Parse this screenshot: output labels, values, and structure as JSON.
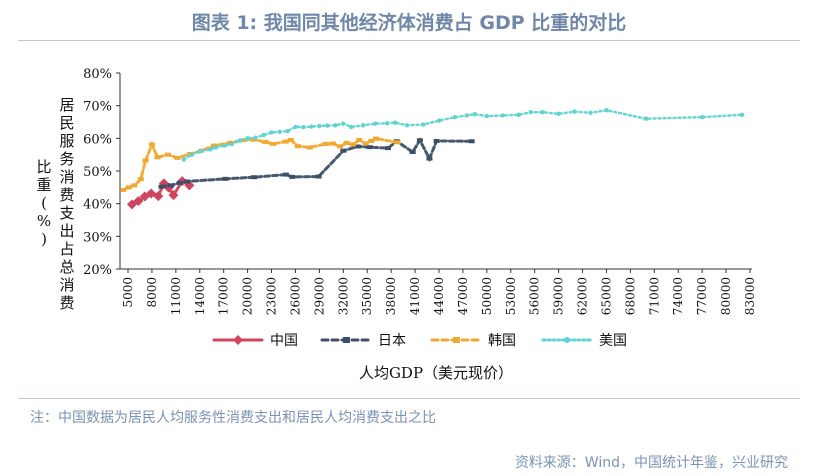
{
  "title": "图表 1:  我国同其他经济体消费占 GDP 比重的对比",
  "note": "注：中国数据为居民人均服务性消费支出和居民人均消费支出之比",
  "source": "资料来源：Wind，中国统计年鉴，兴业研究",
  "chart_data": {
    "type": "line",
    "title": "",
    "xlabel": "人均GDP（美元现价）",
    "ylabel": "居民服务消费支出占总消费比重(%)",
    "ylabel_chars": [
      "居",
      "民",
      "服",
      "务",
      "消",
      "费",
      "支",
      "出",
      "占",
      "总",
      "消",
      "费"
    ],
    "ylabel_right_chars": [
      "比",
      "重",
      "(",
      "%",
      ")"
    ],
    "ylim": [
      20,
      80
    ],
    "yticks": [
      "20%",
      "30%",
      "40%",
      "50%",
      "60%",
      "70%",
      "80%"
    ],
    "x_tick_labels": [
      "5000",
      "8000",
      "11000",
      "14000",
      "17000",
      "20000",
      "23000",
      "26000",
      "29000",
      "32000",
      "35000",
      "38000",
      "41000",
      "44000",
      "47000",
      "50000",
      "53000",
      "56000",
      "59000",
      "62000",
      "65000",
      "68000",
      "71000",
      "74000",
      "77000",
      "80000",
      "83000"
    ],
    "x_tick_values": [
      5000,
      8000,
      11000,
      14000,
      17000,
      20000,
      23000,
      26000,
      29000,
      32000,
      35000,
      38000,
      41000,
      44000,
      47000,
      50000,
      53000,
      56000,
      59000,
      62000,
      65000,
      68000,
      71000,
      74000,
      77000,
      80000,
      83000
    ],
    "xlim": [
      4000,
      84000
    ],
    "grid": false,
    "legend_position": "bottom",
    "series": [
      {
        "name": "中国",
        "color": "#d0445e",
        "marker": "diamond",
        "x": [
          5500,
          6300,
          7100,
          7900,
          8800,
          9500,
          10100,
          10700,
          11800,
          12700
        ],
        "y": [
          39.8,
          40.8,
          42.2,
          43.1,
          42.3,
          46.2,
          44.9,
          42.6,
          46.9,
          45.6
        ]
      },
      {
        "name": "日本",
        "color": "#3c4f68",
        "marker": "dash",
        "x": [
          9200,
          10400,
          11500,
          12400,
          17200,
          20800,
          24800,
          25600,
          28900,
          32000,
          33800,
          35300,
          37600,
          38700,
          40700,
          41600,
          42800,
          43700,
          48100
        ],
        "y": [
          45.2,
          45.6,
          46.4,
          46.8,
          47.6,
          48.1,
          48.9,
          48.2,
          48.3,
          56.2,
          57.5,
          57.3,
          57.0,
          59.1,
          55.8,
          59.4,
          53.8,
          59.2,
          59.1
        ]
      },
      {
        "name": "韩国",
        "color": "#f0a830",
        "marker": "dash",
        "x": [
          4400,
          5100,
          5800,
          6600,
          7200,
          8000,
          8700,
          10000,
          11200,
          12800,
          14200,
          15800,
          17800,
          19300,
          20800,
          22200,
          23200,
          24800,
          25400,
          26300,
          27800,
          29800,
          30700,
          31600,
          32400,
          33200,
          34000,
          34800,
          35500,
          36100,
          38800
        ],
        "y": [
          44.2,
          45.0,
          45.6,
          47.5,
          53.2,
          58.1,
          54.2,
          55.0,
          54.0,
          55.2,
          56.2,
          57.8,
          58.6,
          59.4,
          59.6,
          58.9,
          58.3,
          59.0,
          59.5,
          57.6,
          57.2,
          58.3,
          58.4,
          57.5,
          58.6,
          58.1,
          59.5,
          58.4,
          59.2,
          59.9,
          58.8
        ]
      },
      {
        "name": "美国",
        "color": "#5fd4d2",
        "marker": "dot",
        "x": [
          12000,
          13000,
          14000,
          15300,
          16000,
          17100,
          18000,
          19000,
          20000,
          21000,
          22000,
          23000,
          24000,
          25000,
          26000,
          27000,
          28000,
          29000,
          30000,
          31000,
          32000,
          33000,
          34500,
          36000,
          37500,
          38500,
          40000,
          42000,
          44000,
          46000,
          47500,
          48500,
          50000,
          52000,
          54000,
          55500,
          57000,
          59000,
          61000,
          63000,
          65000,
          70000,
          77000,
          82000
        ],
        "y": [
          53.5,
          55.0,
          56.0,
          56.6,
          57.2,
          57.8,
          58.2,
          59.3,
          60.0,
          60.2,
          61.0,
          61.8,
          62.0,
          62.2,
          63.5,
          63.4,
          63.6,
          63.8,
          63.9,
          64.0,
          64.5,
          63.5,
          64.0,
          64.5,
          64.6,
          64.8,
          64.0,
          64.2,
          65.4,
          66.5,
          67.0,
          67.4,
          66.8,
          67.0,
          67.2,
          68.0,
          68.0,
          67.5,
          68.2,
          67.8,
          68.6,
          66.0,
          66.5,
          67.2
        ]
      }
    ]
  }
}
